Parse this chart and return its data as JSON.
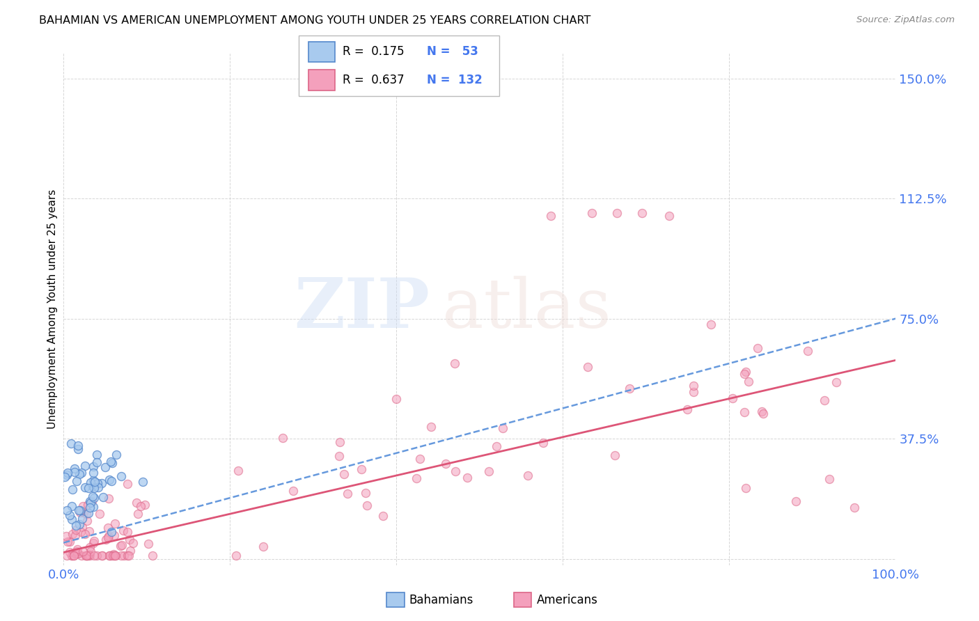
{
  "title": "BAHAMIAN VS AMERICAN UNEMPLOYMENT AMONG YOUTH UNDER 25 YEARS CORRELATION CHART",
  "source": "Source: ZipAtlas.com",
  "ylabel": "Unemployment Among Youth under 25 years",
  "xmin": 0.0,
  "xmax": 1.0,
  "ymin": -0.02,
  "ymax": 1.58,
  "bahamian_color": "#a8caee",
  "bahamian_edge": "#5588cc",
  "american_color": "#f4a0bc",
  "american_edge": "#dd6688",
  "blue_line_color": "#6699dd",
  "pink_line_color": "#dd5577",
  "background_color": "#ffffff",
  "tick_color": "#4477ee",
  "ytick_vals": [
    0.0,
    0.375,
    0.75,
    1.125,
    1.5
  ],
  "ytick_labels": [
    "",
    "37.5%",
    "75.0%",
    "112.5%",
    "150.0%"
  ],
  "blue_line_start_x": 0.0,
  "blue_line_start_y": 0.05,
  "blue_line_end_x": 1.0,
  "blue_line_end_y": 0.75,
  "pink_line_start_x": 0.0,
  "pink_line_start_y": 0.02,
  "pink_line_end_x": 1.0,
  "pink_line_end_y": 0.62
}
